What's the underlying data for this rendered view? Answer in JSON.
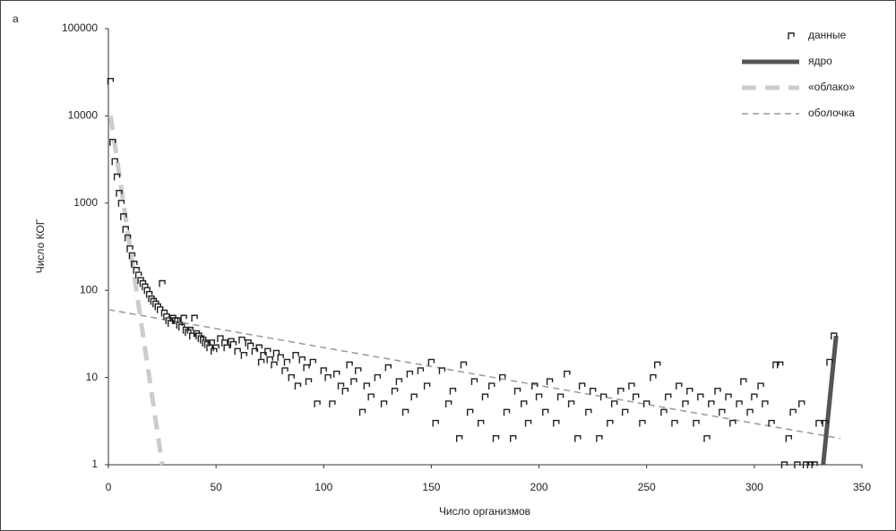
{
  "chart_data": {
    "type": "scatter",
    "panel_label": "а",
    "x_label": "Число организмов",
    "y_label": "Число КОГ",
    "xlim": [
      0,
      350
    ],
    "xticks": [
      0,
      50,
      100,
      150,
      200,
      250,
      300,
      350
    ],
    "ylim": [
      1,
      100000
    ],
    "yticks": [
      1,
      10,
      100,
      1000,
      10000,
      100000
    ],
    "yscale": "log",
    "legend": "upper right",
    "series": [
      {
        "name": "данные",
        "kind": "marker",
        "color": "#222222",
        "x": [
          1,
          2,
          3,
          4,
          5,
          6,
          7,
          8,
          9,
          10,
          11,
          12,
          13,
          14,
          15,
          16,
          17,
          18,
          19,
          20,
          21,
          22,
          23,
          24,
          25,
          26,
          27,
          28,
          29,
          30,
          31,
          32,
          33,
          34,
          35,
          36,
          37,
          38,
          39,
          40,
          41,
          42,
          43,
          44,
          45,
          46,
          47,
          48,
          49,
          50,
          52,
          54,
          55,
          57,
          58,
          60,
          62,
          63,
          65,
          66,
          68,
          70,
          71,
          72,
          74,
          75,
          77,
          78,
          80,
          82,
          83,
          85,
          87,
          88,
          90,
          92,
          93,
          95,
          97,
          100,
          102,
          104,
          106,
          108,
          110,
          112,
          114,
          116,
          118,
          120,
          122,
          125,
          128,
          130,
          133,
          135,
          138,
          140,
          142,
          145,
          148,
          150,
          152,
          155,
          158,
          160,
          163,
          165,
          168,
          170,
          173,
          175,
          178,
          180,
          183,
          185,
          188,
          190,
          193,
          195,
          198,
          200,
          203,
          205,
          208,
          210,
          213,
          215,
          218,
          220,
          223,
          225,
          228,
          230,
          233,
          235,
          238,
          240,
          243,
          245,
          248,
          250,
          253,
          255,
          258,
          260,
          263,
          265,
          268,
          270,
          273,
          275,
          278,
          280,
          283,
          285,
          288,
          290,
          293,
          295,
          298,
          300,
          303,
          305,
          308,
          310,
          312,
          314,
          316,
          318,
          320,
          322,
          324,
          326,
          328,
          330,
          333,
          335,
          337
        ],
        "values": [
          25000,
          5000,
          3000,
          2000,
          1300,
          1000,
          700,
          500,
          400,
          300,
          250,
          200,
          170,
          150,
          130,
          120,
          110,
          100,
          90,
          80,
          75,
          70,
          65,
          60,
          120,
          55,
          50,
          45,
          42,
          48,
          45,
          45,
          40,
          38,
          48,
          35,
          33,
          35,
          30,
          48,
          32,
          30,
          28,
          27,
          25,
          24,
          22,
          25,
          20,
          22,
          28,
          25,
          22,
          26,
          24,
          20,
          27,
          18,
          25,
          23,
          20,
          22,
          15,
          18,
          20,
          16,
          14,
          19,
          17,
          12,
          15,
          10,
          18,
          8,
          16,
          13,
          9,
          15,
          5,
          12,
          10,
          5,
          11,
          8,
          7,
          14,
          9,
          12,
          4,
          8,
          6,
          10,
          5,
          13,
          7,
          9,
          4,
          11,
          6,
          12,
          8,
          15,
          3,
          12,
          5,
          7,
          2,
          14,
          4,
          9,
          3,
          6,
          8,
          2,
          10,
          4,
          2,
          7,
          5,
          3,
          8,
          6,
          4,
          9,
          3,
          6,
          11,
          5,
          2,
          8,
          4,
          7,
          2,
          6,
          3,
          5,
          7,
          4,
          8,
          6,
          3,
          5,
          10,
          14,
          4,
          6,
          3,
          8,
          5,
          7,
          3,
          6,
          2,
          5,
          7,
          4,
          6,
          3,
          5,
          9,
          4,
          6,
          8,
          5,
          3,
          14,
          14,
          1,
          2,
          4,
          1,
          5,
          1,
          1,
          1,
          3,
          3,
          15,
          30
        ]
      },
      {
        "name": "ядро",
        "kind": "line",
        "color": "#555555",
        "width": 5,
        "x": [
          332,
          338
        ],
        "values": [
          1,
          30
        ]
      },
      {
        "name": "«облако»",
        "kind": "line",
        "color": "#cccccc",
        "width": 5,
        "dash": "16 10",
        "x": [
          1,
          25
        ],
        "values": [
          10000,
          1
        ]
      },
      {
        "name": "оболочка",
        "kind": "line",
        "color": "#999999",
        "width": 1.5,
        "dash": "7 5",
        "x": [
          0,
          340
        ],
        "values": [
          60,
          2
        ]
      }
    ]
  }
}
